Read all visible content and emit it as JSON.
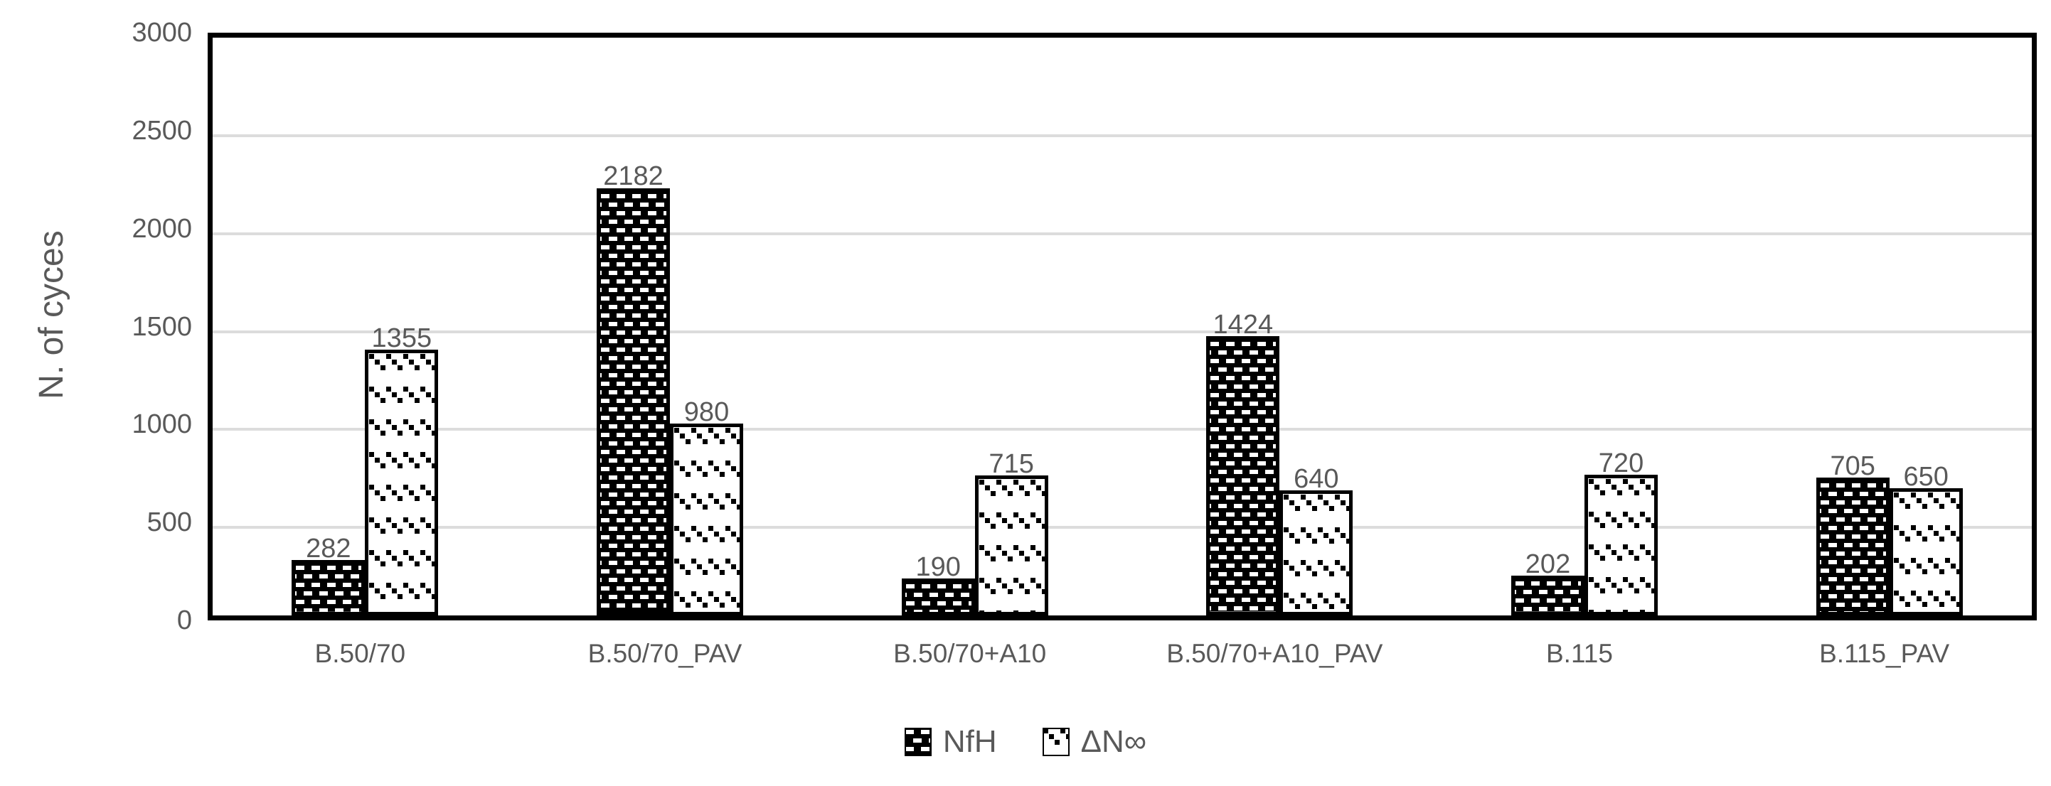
{
  "chart_data": {
    "type": "bar",
    "title": "",
    "categories": [
      "B.50/70",
      "B.50/70_PAV",
      "B.50/70+A10",
      "B.50/70+A10_PAV",
      "B.115",
      "B.115_PAV"
    ],
    "series": [
      {
        "name": "NfH",
        "pattern": "dark-brick-dash",
        "values": [
          282,
          2182,
          190,
          1424,
          202,
          705
        ]
      },
      {
        "name": "ΔN∞",
        "pattern": "light-diagonal-dot",
        "values": [
          1355,
          980,
          715,
          640,
          720,
          650
        ]
      }
    ],
    "data_labels": {
      "NfH": [
        "282",
        "2182",
        "190",
        "1424",
        "202",
        "705"
      ],
      "dN": [
        "1355",
        "980",
        "715",
        "640",
        "720",
        "650"
      ]
    },
    "xlabel": "",
    "ylabel": "N. of cyces",
    "ylim": [
      0,
      3000
    ],
    "ytick_step": 500,
    "yticks": [
      "0",
      "500",
      "1000",
      "1500",
      "2000",
      "2500",
      "3000"
    ],
    "grid": true,
    "legend_position": "bottom",
    "legend_items": [
      "NfH",
      "ΔN∞"
    ]
  },
  "colors": {
    "text": "#595959",
    "gridline": "#DCDCDC",
    "axis_border": "#000000",
    "bar_outline": "#000000",
    "nfh_pattern_bg": "#000000",
    "nfh_pattern_fg": "#FFFFFF",
    "dn_pattern_bg": "#FFFFFF",
    "dn_pattern_fg": "#000000",
    "background": "#FFFFFF"
  }
}
